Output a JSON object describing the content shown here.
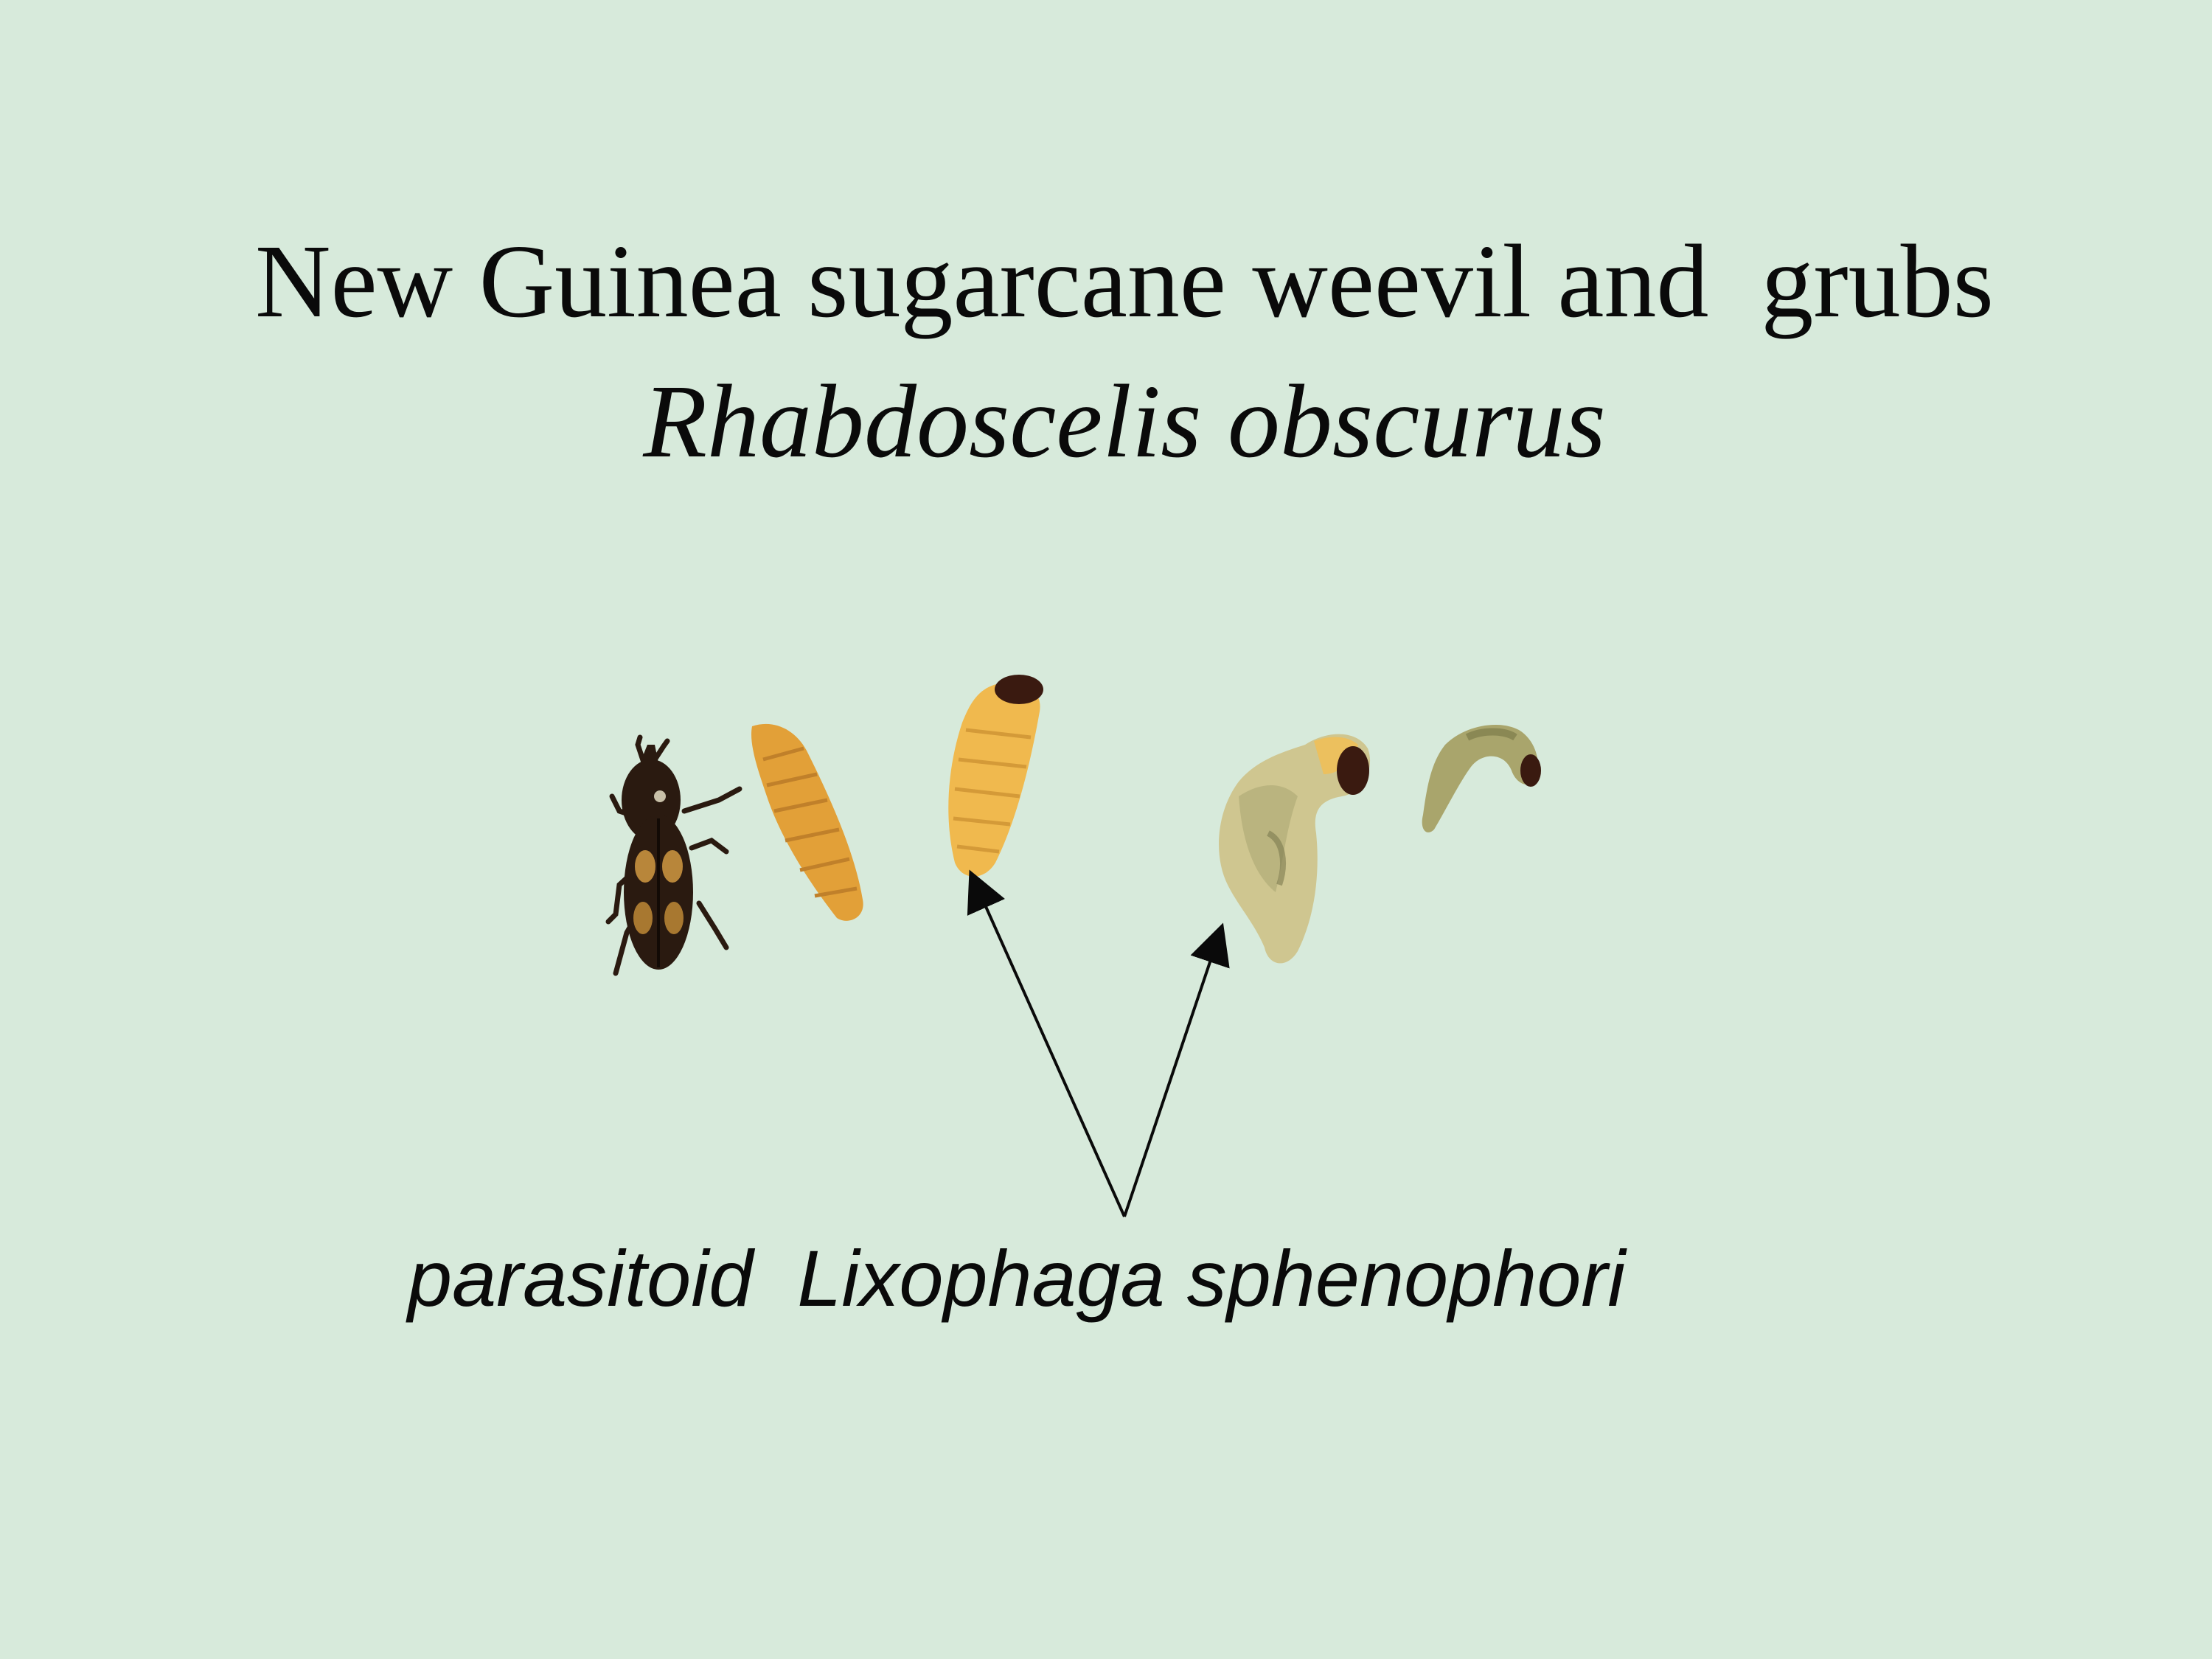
{
  "slide": {
    "title": "New Guinea sugarcane weevil and  grubs",
    "subtitle": "Rhabdoscelis obscurus",
    "caption": "parasitoid  Lixophaga sphenophori"
  },
  "colors": {
    "background": "#d7eadb",
    "text": "#0a0a0a",
    "weevil": "#2a1a10",
    "weevil_spots": "#b8863a",
    "grub_orange": "#e8a640",
    "grub_yellow": "#f0c060",
    "grub_pale": "#d4c896",
    "grub_green": "#b8b880",
    "grub_head": "#3a1a10"
  }
}
